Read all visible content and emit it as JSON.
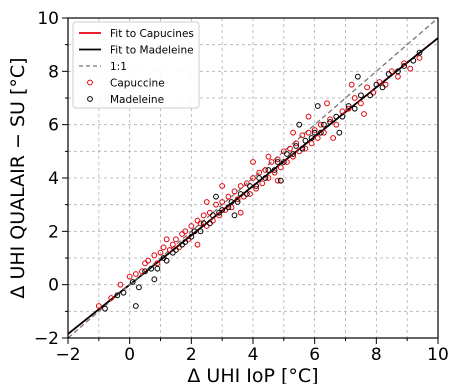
{
  "chart_data": {
    "type": "scatter",
    "xlabel": "Δ UHI IoP [°C]",
    "ylabel": "Δ UHI QUALAIR − SU [°C]",
    "xlim": [
      -2,
      10
    ],
    "ylim": [
      -2,
      10
    ],
    "x_ticks": [
      "−2",
      "0",
      "2",
      "4",
      "6",
      "8",
      "10"
    ],
    "y_ticks": [
      "−2",
      "0",
      "2",
      "4",
      "6",
      "8",
      "10"
    ],
    "grid": true,
    "legend_position": "top-left",
    "series": [
      {
        "name": "Fit to Capucines",
        "kind": "line",
        "color": "#e8000b",
        "slope": 0.925,
        "intercept": 0.0,
        "x_range": [
          -2,
          10
        ]
      },
      {
        "name": "Fit to Madeleine",
        "kind": "line",
        "color": "#000000",
        "slope": 0.925,
        "intercept": 0.0,
        "x_range": [
          -2,
          10
        ]
      },
      {
        "name": "1:1",
        "kind": "line",
        "color": "#777777",
        "dashed": true,
        "slope": 1.0,
        "intercept": 0.0,
        "x_range": [
          -2,
          10
        ]
      },
      {
        "name": "Capuccine",
        "kind": "scatter",
        "color": "#e8000b",
        "points": [
          [
            -1.0,
            -0.8
          ],
          [
            -0.6,
            -0.5
          ],
          [
            -0.3,
            0.0
          ],
          [
            0.0,
            0.3
          ],
          [
            0.2,
            0.4
          ],
          [
            0.4,
            0.5
          ],
          [
            0.5,
            0.8
          ],
          [
            0.6,
            0.9
          ],
          [
            0.8,
            1.1
          ],
          [
            0.9,
            0.8
          ],
          [
            1.0,
            1.2
          ],
          [
            1.1,
            1.4
          ],
          [
            1.3,
            1.3
          ],
          [
            1.4,
            1.5
          ],
          [
            1.5,
            1.7
          ],
          [
            1.6,
            1.4
          ],
          [
            1.7,
            1.9
          ],
          [
            1.8,
            2.0
          ],
          [
            1.9,
            1.7
          ],
          [
            2.0,
            2.2
          ],
          [
            2.1,
            2.0
          ],
          [
            2.2,
            2.4
          ],
          [
            2.3,
            2.3
          ],
          [
            2.4,
            2.6
          ],
          [
            2.5,
            2.2
          ],
          [
            2.6,
            2.7
          ],
          [
            2.7,
            2.4
          ],
          [
            2.8,
            3.0
          ],
          [
            2.9,
            2.6
          ],
          [
            3.0,
            3.1
          ],
          [
            3.1,
            2.8
          ],
          [
            3.2,
            3.3
          ],
          [
            3.3,
            2.9
          ],
          [
            3.4,
            3.5
          ],
          [
            3.5,
            3.2
          ],
          [
            3.6,
            3.7
          ],
          [
            3.7,
            3.3
          ],
          [
            3.8,
            3.8
          ],
          [
            3.9,
            3.4
          ],
          [
            4.0,
            4.0
          ],
          [
            4.1,
            3.6
          ],
          [
            4.2,
            4.2
          ],
          [
            4.3,
            3.8
          ],
          [
            4.4,
            4.3
          ],
          [
            4.5,
            4.0
          ],
          [
            4.6,
            4.6
          ],
          [
            4.7,
            4.2
          ],
          [
            4.8,
            4.7
          ],
          [
            4.9,
            4.4
          ],
          [
            5.0,
            5.0
          ],
          [
            5.1,
            4.6
          ],
          [
            5.2,
            5.1
          ],
          [
            5.3,
            4.8
          ],
          [
            5.4,
            5.3
          ],
          [
            5.5,
            5.0
          ],
          [
            5.6,
            5.6
          ],
          [
            5.7,
            5.1
          ],
          [
            5.8,
            5.7
          ],
          [
            5.9,
            5.3
          ],
          [
            6.0,
            5.8
          ],
          [
            6.1,
            5.5
          ],
          [
            6.2,
            6.0
          ],
          [
            6.3,
            5.7
          ],
          [
            6.5,
            6.2
          ],
          [
            6.7,
            6.0
          ],
          [
            6.9,
            6.5
          ],
          [
            7.1,
            6.6
          ],
          [
            7.3,
            7.0
          ],
          [
            7.5,
            6.8
          ],
          [
            7.7,
            7.4
          ],
          [
            7.9,
            7.2
          ],
          [
            8.1,
            7.6
          ],
          [
            8.3,
            7.5
          ],
          [
            8.5,
            8.0
          ],
          [
            8.7,
            7.8
          ],
          [
            8.9,
            8.3
          ],
          [
            9.1,
            8.1
          ],
          [
            9.4,
            8.5
          ],
          [
            3.0,
            3.7
          ],
          [
            4.5,
            4.8
          ],
          [
            5.8,
            6.3
          ],
          [
            6.4,
            6.8
          ],
          [
            7.2,
            7.5
          ],
          [
            3.6,
            2.7
          ],
          [
            4.8,
            3.9
          ],
          [
            2.2,
            1.5
          ],
          [
            6.6,
            5.5
          ],
          [
            7.6,
            6.4
          ],
          [
            2.5,
            3.1
          ],
          [
            1.2,
            1.7
          ],
          [
            4.0,
            4.6
          ],
          [
            5.3,
            5.7
          ]
        ]
      },
      {
        "name": "Madeleine",
        "kind": "scatter",
        "color": "#000000",
        "points": [
          [
            -0.8,
            -0.9
          ],
          [
            -0.4,
            -0.4
          ],
          [
            -0.2,
            -0.3
          ],
          [
            0.1,
            0.1
          ],
          [
            0.3,
            -0.1
          ],
          [
            0.5,
            0.5
          ],
          [
            0.7,
            0.6
          ],
          [
            0.9,
            0.6
          ],
          [
            1.1,
            1.0
          ],
          [
            1.2,
            0.9
          ],
          [
            1.4,
            1.2
          ],
          [
            1.5,
            1.3
          ],
          [
            1.7,
            1.5
          ],
          [
            1.8,
            1.6
          ],
          [
            2.0,
            1.8
          ],
          [
            2.1,
            2.0
          ],
          [
            2.3,
            2.0
          ],
          [
            2.4,
            2.3
          ],
          [
            2.6,
            2.3
          ],
          [
            2.7,
            2.6
          ],
          [
            2.9,
            2.7
          ],
          [
            3.0,
            2.8
          ],
          [
            3.2,
            2.9
          ],
          [
            3.3,
            3.1
          ],
          [
            3.5,
            3.1
          ],
          [
            3.6,
            3.4
          ],
          [
            3.8,
            3.4
          ],
          [
            3.9,
            3.7
          ],
          [
            4.1,
            3.7
          ],
          [
            4.2,
            4.0
          ],
          [
            4.4,
            4.0
          ],
          [
            4.5,
            4.3
          ],
          [
            4.7,
            4.3
          ],
          [
            4.8,
            4.6
          ],
          [
            5.0,
            4.6
          ],
          [
            5.1,
            4.9
          ],
          [
            5.3,
            4.9
          ],
          [
            5.4,
            5.2
          ],
          [
            5.6,
            5.1
          ],
          [
            5.7,
            5.4
          ],
          [
            5.9,
            5.5
          ],
          [
            6.0,
            5.7
          ],
          [
            6.2,
            5.7
          ],
          [
            6.3,
            6.0
          ],
          [
            6.5,
            6.1
          ],
          [
            6.7,
            6.3
          ],
          [
            6.9,
            6.3
          ],
          [
            7.1,
            6.7
          ],
          [
            7.3,
            6.6
          ],
          [
            7.5,
            7.1
          ],
          [
            7.8,
            7.1
          ],
          [
            8.0,
            7.5
          ],
          [
            8.2,
            7.4
          ],
          [
            8.4,
            7.9
          ],
          [
            8.7,
            8.0
          ],
          [
            8.9,
            8.2
          ],
          [
            9.2,
            8.4
          ],
          [
            9.4,
            8.7
          ],
          [
            0.2,
            -0.8
          ],
          [
            0.8,
            0.2
          ],
          [
            3.4,
            2.6
          ],
          [
            4.9,
            3.9
          ],
          [
            6.8,
            5.7
          ],
          [
            2.8,
            3.3
          ],
          [
            5.5,
            6.0
          ],
          [
            6.1,
            6.7
          ],
          [
            7.4,
            7.8
          ]
        ]
      }
    ]
  }
}
